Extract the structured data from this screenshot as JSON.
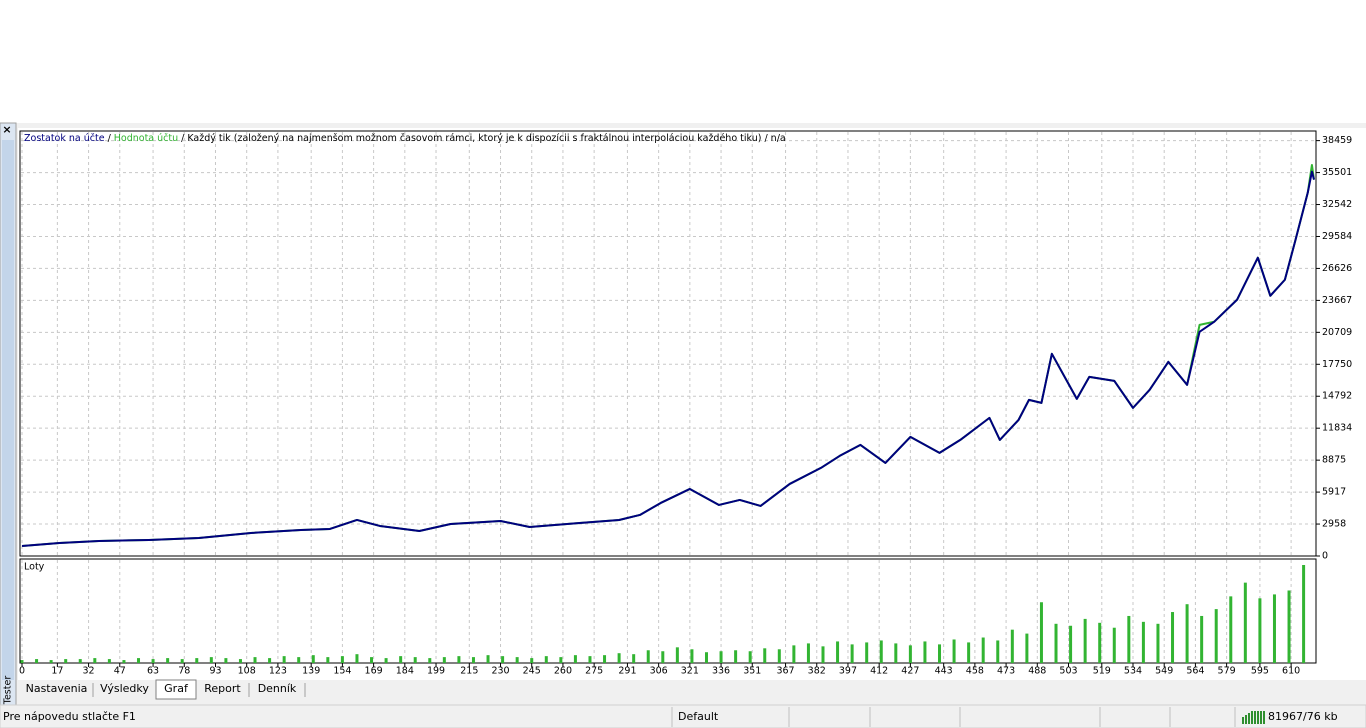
{
  "sidebar": {
    "label": "Tester"
  },
  "chart_data": [
    {
      "type": "line",
      "series_separator": "/",
      "subtitle": "Každý tik (založený na najmenšom možnom časovom rámci, ktorý je k dispozícii s fraktálnou interpoláciou každého tiku)",
      "note": "n/a",
      "x": [
        0,
        18,
        37,
        61,
        85,
        110,
        134,
        148,
        161,
        172,
        191,
        206,
        230,
        244,
        268,
        287,
        297,
        307,
        321,
        335,
        345,
        355,
        369,
        384,
        393,
        403,
        415,
        427,
        441,
        451,
        465,
        470,
        479,
        484,
        490,
        495,
        507,
        513,
        525,
        534,
        542,
        551,
        560,
        566,
        573,
        584,
        594,
        600,
        607,
        612,
        618,
        620,
        621
      ],
      "series": [
        {
          "name": "Zostatok na účte",
          "color": "#00007f",
          "values": [
            927,
            1205,
            1390,
            1483,
            1668,
            2131,
            2409,
            2502,
            3336,
            2780,
            2317,
            2965,
            3243,
            2687,
            3058,
            3336,
            3800,
            4911,
            6209,
            4726,
            5190,
            4634,
            6672,
            8155,
            9267,
            10286,
            8618,
            11028,
            9545,
            10750,
            12788,
            10750,
            12603,
            14456,
            14178,
            18720,
            14549,
            16588,
            16217,
            13715,
            15383,
            17978,
            15847,
            20759,
            21685,
            23724,
            27616,
            24094,
            25577,
            29191,
            33639,
            35584,
            34843
          ]
        },
        {
          "name": "Hodnota účtu",
          "color": "#32b432",
          "values": [
            927,
            1205,
            1390,
            1483,
            1668,
            2131,
            2409,
            2502,
            3336,
            2780,
            2317,
            2965,
            3243,
            2687,
            3058,
            3336,
            3800,
            4911,
            6209,
            4726,
            5190,
            4634,
            6672,
            8155,
            9267,
            10286,
            8618,
            11028,
            9545,
            10750,
            12788,
            10750,
            12603,
            14456,
            14178,
            18720,
            14549,
            16588,
            16217,
            13715,
            15383,
            17978,
            15847,
            21400,
            21685,
            23724,
            27616,
            24094,
            25577,
            29191,
            33639,
            36200,
            34843
          ]
        }
      ],
      "xlim": [
        0,
        621
      ],
      "xticks": [
        0,
        17,
        32,
        47,
        63,
        78,
        93,
        108,
        123,
        139,
        154,
        169,
        184,
        199,
        215,
        230,
        245,
        260,
        275,
        291,
        306,
        321,
        336,
        351,
        367,
        382,
        397,
        412,
        427,
        443,
        458,
        473,
        488,
        503,
        519,
        534,
        549,
        564,
        579,
        595,
        610
      ],
      "ylim": [
        0,
        39350
      ],
      "yticks": [
        0,
        2958,
        5917,
        8875,
        11834,
        14792,
        17750,
        20709,
        23667,
        26626,
        29584,
        32542,
        35501,
        38459
      ],
      "grid": true
    },
    {
      "type": "bar",
      "title": "Loty",
      "color": "#32b432",
      "x": [
        0,
        7,
        14,
        21,
        28,
        35,
        42,
        49,
        56,
        63,
        70,
        77,
        84,
        91,
        98,
        105,
        112,
        119,
        126,
        133,
        140,
        147,
        154,
        161,
        168,
        175,
        182,
        189,
        196,
        203,
        210,
        217,
        224,
        231,
        238,
        245,
        252,
        259,
        266,
        273,
        280,
        287,
        294,
        301,
        308,
        315,
        322,
        329,
        336,
        343,
        350,
        357,
        364,
        371,
        378,
        385,
        392,
        399,
        406,
        413,
        420,
        427,
        434,
        441,
        448,
        455,
        462,
        469,
        476,
        483,
        490,
        497,
        504,
        511,
        518,
        525,
        532,
        539,
        546,
        553,
        560,
        567,
        574,
        581,
        588,
        595,
        602,
        609,
        616
      ],
      "values": [
        0.03,
        0.04,
        0.03,
        0.04,
        0.04,
        0.05,
        0.04,
        0.03,
        0.05,
        0.04,
        0.05,
        0.04,
        0.05,
        0.06,
        0.05,
        0.04,
        0.06,
        0.05,
        0.07,
        0.06,
        0.08,
        0.06,
        0.07,
        0.09,
        0.06,
        0.05,
        0.07,
        0.06,
        0.05,
        0.06,
        0.07,
        0.06,
        0.08,
        0.07,
        0.06,
        0.05,
        0.07,
        0.06,
        0.08,
        0.07,
        0.08,
        0.1,
        0.09,
        0.13,
        0.12,
        0.16,
        0.14,
        0.11,
        0.12,
        0.13,
        0.12,
        0.15,
        0.14,
        0.18,
        0.2,
        0.17,
        0.22,
        0.19,
        0.21,
        0.23,
        0.2,
        0.18,
        0.22,
        0.19,
        0.24,
        0.21,
        0.26,
        0.23,
        0.34,
        0.3,
        0.62,
        0.4,
        0.38,
        0.45,
        0.41,
        0.36,
        0.48,
        0.42,
        0.4,
        0.52,
        0.6,
        0.48,
        0.55,
        0.68,
        0.82,
        0.66,
        0.7,
        0.74,
        1.0
      ],
      "ylim": [
        0,
        1
      ]
    }
  ],
  "tabs": [
    "Nastavenia",
    "Výsledky",
    "Graf",
    "Report",
    "Denník"
  ],
  "selected_tab": 2,
  "status_bar": {
    "help": "Pre nápovedu stlačte F1",
    "profile": "Default",
    "traffic": "81967/76 kb"
  }
}
